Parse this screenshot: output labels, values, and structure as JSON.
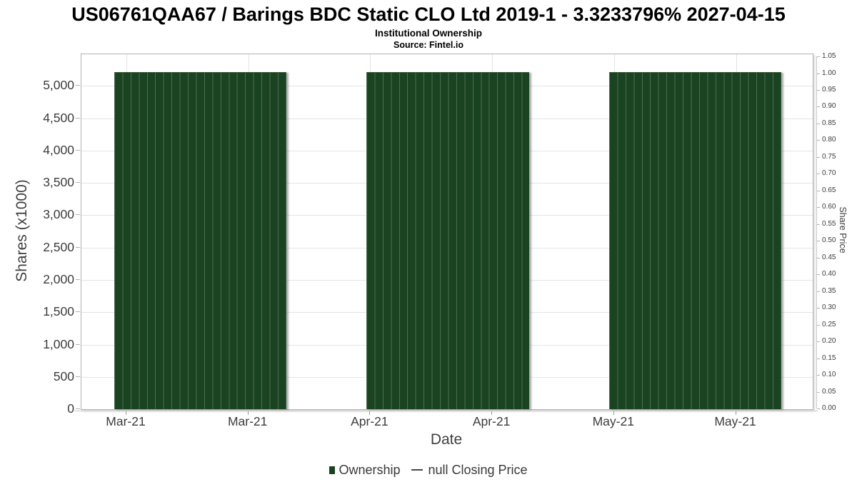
{
  "header": {
    "title": "US06761QAA67 / Barings BDC Static CLO Ltd 2019-1 - 3.3233796% 2027-04-15",
    "subtitle": "Institutional Ownership",
    "source": "Source: Fintel.io"
  },
  "chart_data": {
    "type": "bar",
    "title": "US06761QAA67 / Barings BDC Static CLO Ltd 2019-1 - 3.3233796% 2027-04-15",
    "subtitle": "Institutional Ownership",
    "source": "Source: Fintel.io",
    "xlabel": "Date",
    "ylabel_left": "Shares (x1000)",
    "ylabel_right": "Share Price",
    "x_tick_labels": [
      "Mar-21",
      "Mar-21",
      "Apr-21",
      "Apr-21",
      "May-21",
      "May-21"
    ],
    "y_left_ticks": [
      "0",
      "500",
      "1,000",
      "1,500",
      "2,000",
      "2,500",
      "3,000",
      "3,500",
      "4,000",
      "4,500",
      "5,000"
    ],
    "y_left_axis_max_x1000": 5490,
    "y_right_ticks": [
      "0.00",
      "0.05",
      "0.10",
      "0.15",
      "0.20",
      "0.25",
      "0.30",
      "0.35",
      "0.40",
      "0.45",
      "0.50",
      "0.55",
      "0.60",
      "0.65",
      "0.70",
      "0.75",
      "0.80",
      "0.85",
      "0.90",
      "0.95",
      "1.00",
      "1.05"
    ],
    "y_right_range": [
      0.0,
      1.05
    ],
    "grid": true,
    "legend_position": "bottom",
    "colors": {
      "bar_fill": "#1a4321",
      "bar_stripe": "#3d5a42",
      "gridline": "#e4e4e4",
      "axis_text": "#3c3c3c",
      "frame": "#b2b2b2"
    },
    "series": [
      {
        "name": "Ownership",
        "type": "bar",
        "color": "#1a4321",
        "groups": [
          {
            "x_label": "Mar-21",
            "bar_count": 21,
            "value_x1000": 5200
          },
          {
            "x_label": "Apr-21",
            "bar_count": 20,
            "value_x1000": 5200
          },
          {
            "x_label": "May-21",
            "bar_count": 21,
            "value_x1000": 5200
          }
        ]
      },
      {
        "name": "null Closing Price",
        "type": "line",
        "color": "#474747",
        "values": []
      }
    ],
    "legend": [
      {
        "label": "Ownership",
        "marker": "square",
        "color": "#1a4321"
      },
      {
        "label": "null Closing Price",
        "marker": "line",
        "color": "#474747"
      }
    ]
  }
}
